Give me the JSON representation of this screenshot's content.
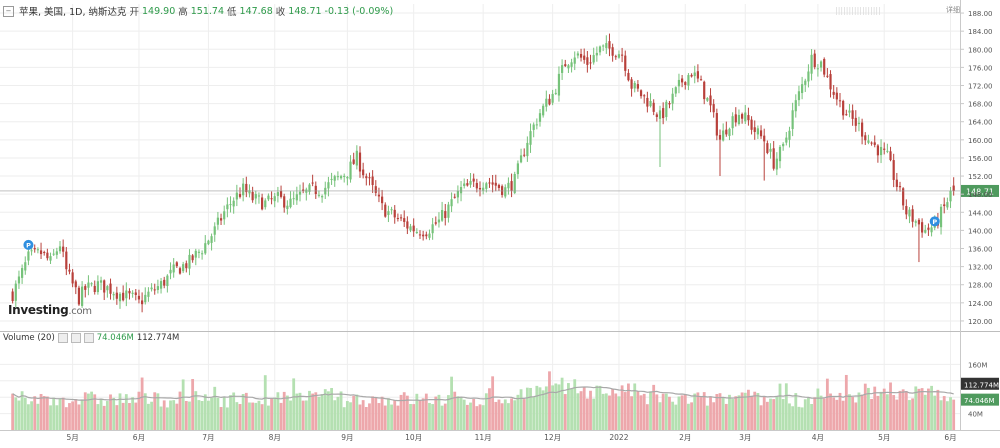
{
  "header": {
    "symbol": "苹果, 美国, 1D, 纳斯达克",
    "open_label": "开",
    "open": "149.90",
    "high_label": "高",
    "high": "151.74",
    "low_label": "低",
    "low": "147.68",
    "close_label": "收",
    "close": "148.71",
    "change": "-0.13 (-0.09%)"
  },
  "volume_header": {
    "title": "Volume (20)",
    "value1": "74.046M",
    "value2": "112.774M"
  },
  "logo": {
    "text": "Investing",
    "suffix": ".com"
  },
  "corner_button": "详细",
  "colors": {
    "up": "#76c27a",
    "down": "#b8403b",
    "vol_up": "#b4e0b1",
    "vol_down": "#eda7ab",
    "ma": "#a8a8a8",
    "price_tag": "#4f9a5e",
    "grid": "#eeeeee",
    "axis": "#c9c9c9"
  },
  "chart_data": {
    "type": "candlestick",
    "price_axis": {
      "ylim": [
        118,
        190
      ],
      "ticks": [
        120,
        124,
        128,
        132,
        136,
        140,
        144,
        148,
        152,
        156,
        160,
        164,
        168,
        172,
        176,
        180,
        184,
        188
      ]
    },
    "volume_axis": {
      "ylim": [
        0,
        200
      ],
      "ticks": [
        {
          "v": 40,
          "label": "40M"
        },
        {
          "v": 80,
          "label": "80M"
        },
        {
          "v": 120,
          "label": "120M"
        },
        {
          "v": 160,
          "label": "160M"
        }
      ]
    },
    "last_price": "148.71",
    "volume_tags": [
      "112.774M",
      "74.046M"
    ],
    "xlim": [
      -4,
      300
    ],
    "x_ticks": [
      {
        "i": 19,
        "label": "5月"
      },
      {
        "i": 40,
        "label": "6月"
      },
      {
        "i": 62,
        "label": "7月"
      },
      {
        "i": 83,
        "label": "8月"
      },
      {
        "i": 106,
        "label": "9月"
      },
      {
        "i": 127,
        "label": "10月"
      },
      {
        "i": 149,
        "label": "11月"
      },
      {
        "i": 171,
        "label": "12月"
      },
      {
        "i": 192,
        "label": "2022"
      },
      {
        "i": 213,
        "label": "2月"
      },
      {
        "i": 232,
        "label": "3月"
      },
      {
        "i": 255,
        "label": "4月"
      },
      {
        "i": 276,
        "label": "5月"
      },
      {
        "i": 297,
        "label": "6月"
      }
    ],
    "markers": [
      {
        "i": 5,
        "price": 136.8,
        "label": "P"
      },
      {
        "i": 292,
        "price": 142.0,
        "label": "P"
      }
    ],
    "anchors": [
      [
        0,
        126
      ],
      [
        2,
        129
      ],
      [
        5,
        134
      ],
      [
        9,
        135
      ],
      [
        12,
        133
      ],
      [
        15,
        137
      ],
      [
        17,
        131
      ],
      [
        19,
        128
      ],
      [
        21,
        125
      ],
      [
        23,
        127
      ],
      [
        27,
        128
      ],
      [
        31,
        127
      ],
      [
        34,
        126
      ],
      [
        38,
        125
      ],
      [
        40,
        124
      ],
      [
        43,
        126
      ],
      [
        47,
        128
      ],
      [
        51,
        131
      ],
      [
        56,
        133
      ],
      [
        60,
        136
      ],
      [
        64,
        140
      ],
      [
        67,
        144
      ],
      [
        70,
        147
      ],
      [
        73,
        149
      ],
      [
        76,
        147
      ],
      [
        80,
        146
      ],
      [
        84,
        147
      ],
      [
        88,
        146
      ],
      [
        92,
        148
      ],
      [
        95,
        149
      ],
      [
        98,
        149
      ],
      [
        102,
        151
      ],
      [
        106,
        153
      ],
      [
        109,
        156
      ],
      [
        111,
        153
      ],
      [
        114,
        149
      ],
      [
        117,
        145
      ],
      [
        121,
        143
      ],
      [
        125,
        141
      ],
      [
        128,
        140
      ],
      [
        131,
        140
      ],
      [
        135,
        142
      ],
      [
        138,
        145
      ],
      [
        142,
        149
      ],
      [
        146,
        150
      ],
      [
        150,
        151
      ],
      [
        153,
        150
      ],
      [
        156,
        149
      ],
      [
        159,
        151
      ],
      [
        163,
        160
      ],
      [
        167,
        166
      ],
      [
        171,
        170
      ],
      [
        175,
        177
      ],
      [
        178,
        179
      ],
      [
        182,
        177
      ],
      [
        186,
        180
      ],
      [
        190,
        180
      ],
      [
        193,
        179
      ],
      [
        196,
        172
      ],
      [
        199,
        170
      ],
      [
        202,
        168
      ],
      [
        205,
        165
      ],
      [
        208,
        168
      ],
      [
        212,
        173
      ],
      [
        215,
        175
      ],
      [
        218,
        172
      ],
      [
        221,
        167
      ],
      [
        224,
        160
      ],
      [
        227,
        164
      ],
      [
        230,
        166
      ],
      [
        233,
        164
      ],
      [
        235,
        162
      ],
      [
        238,
        160
      ],
      [
        241,
        155
      ],
      [
        244,
        158
      ],
      [
        247,
        166
      ],
      [
        250,
        172
      ],
      [
        253,
        178
      ],
      [
        256,
        177
      ],
      [
        259,
        172
      ],
      [
        262,
        168
      ],
      [
        265,
        165
      ],
      [
        268,
        163
      ],
      [
        271,
        160
      ],
      [
        274,
        158
      ],
      [
        277,
        156
      ],
      [
        280,
        150
      ],
      [
        283,
        144
      ],
      [
        286,
        142
      ],
      [
        289,
        140
      ],
      [
        292,
        141
      ],
      [
        295,
        145
      ],
      [
        297,
        148
      ],
      [
        298,
        149
      ]
    ]
  }
}
